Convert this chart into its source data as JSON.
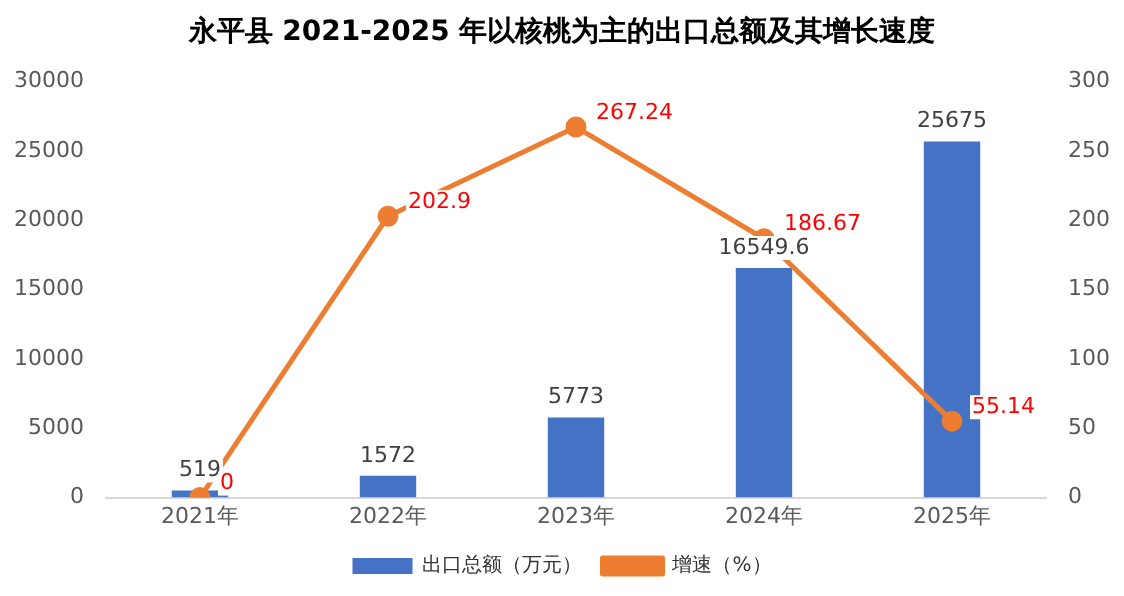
{
  "chart_data": {
    "type": "bar",
    "title": "永平县 2021-2025 年以核桃为主的出口总额及其增长速度",
    "categories": [
      "2021年",
      "2022年",
      "2023年",
      "2024年",
      "2025年"
    ],
    "series": [
      {
        "name": "出口总额（万元）",
        "color": "#4472c4",
        "values": [
          519,
          1572,
          5773,
          16549.6,
          25675
        ]
      },
      {
        "name": "增速（%）",
        "type": "line",
        "axis": "y2",
        "color": "#ed7d31",
        "values": [
          0,
          202.9,
          267.24,
          186.67,
          55.14
        ]
      }
    ],
    "ylim": [
      0,
      30000
    ],
    "yticks": [
      0,
      5000,
      10000,
      15000,
      20000,
      25000,
      30000
    ],
    "y2lim": [
      0,
      300
    ],
    "y2ticks": [
      0,
      50,
      100,
      150,
      200,
      250,
      300
    ],
    "data_labels": true,
    "legend": "bottom",
    "grid": false,
    "marker": "circle",
    "line_style": "solid"
  }
}
